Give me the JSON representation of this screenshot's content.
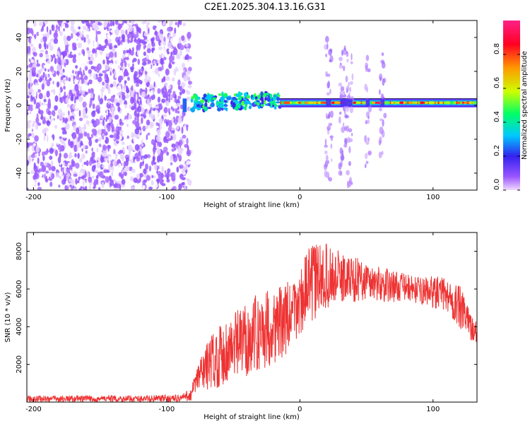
{
  "figure_title": "C2E1.2025.304.13.16.G31",
  "colors": {
    "background": "#ffffff",
    "frame": "#000000",
    "snr_line": "#ee3333",
    "noise_violet": "#7733ee",
    "band_blue": "#2233ee"
  },
  "chart_data": [
    {
      "name": "spectrogram",
      "type": "heatmap",
      "xlabel": "Height of straight line (km)",
      "ylabel": "Frequency (Hz)",
      "xlim": [
        -205,
        133
      ],
      "ylim": [
        -50,
        50
      ],
      "xticks": [
        -200,
        -100,
        0,
        100
      ],
      "yticks": [
        -40,
        -20,
        0,
        20,
        40
      ],
      "colorbar": {
        "label": "Normalized spectral amplitude",
        "range": [
          0,
          1
        ],
        "ticks": [
          0.0,
          0.2,
          0.4,
          0.6,
          0.8
        ],
        "colormap": [
          "#f0d8ff",
          "#9955ff",
          "#3322ee",
          "#00c8ff",
          "#00ff66",
          "#ccff00",
          "#ff9900",
          "#ff0022",
          "#ff2288"
        ]
      },
      "regions": [
        {
          "label": "noise",
          "x": [
            -205,
            -82
          ],
          "f": [
            -50,
            50
          ],
          "amplitude": 0.1
        },
        {
          "label": "weak-band",
          "x": [
            -82,
            -15
          ],
          "f": [
            -3,
            6
          ],
          "amplitude": 0.3
        },
        {
          "label": "strong-band",
          "x": [
            -15,
            133
          ],
          "f": [
            0,
            3
          ],
          "amplitude": 0.85
        },
        {
          "label": "burst",
          "x": [
            19,
            24
          ],
          "f": [
            -50,
            42
          ],
          "amplitude": 0.15
        },
        {
          "label": "burst",
          "x": [
            30,
            40
          ],
          "f": [
            -48,
            35
          ],
          "amplitude": 0.2
        },
        {
          "label": "burst",
          "x": [
            49,
            53
          ],
          "f": [
            -38,
            28
          ],
          "amplitude": 0.1
        },
        {
          "label": "burst",
          "x": [
            60,
            64
          ],
          "f": [
            -30,
            32
          ],
          "amplitude": 0.1
        }
      ]
    },
    {
      "name": "snr",
      "type": "line",
      "xlabel": "Height of straight line (km)",
      "ylabel": "SNR (10 * v/v)",
      "xlim": [
        -205,
        133
      ],
      "ylim": [
        0,
        9000
      ],
      "xticks": [
        -200,
        -100,
        0,
        100
      ],
      "yticks": [
        2000,
        4000,
        6000,
        8000
      ],
      "series": [
        {
          "name": "SNR",
          "color": "#ee3333",
          "x": [
            -205,
            -180,
            -150,
            -120,
            -90,
            -82,
            -75,
            -65,
            -55,
            -45,
            -35,
            -25,
            -15,
            -5,
            0,
            5,
            10,
            20,
            30,
            40,
            50,
            60,
            70,
            80,
            90,
            100,
            110,
            120,
            130,
            133
          ],
          "y_low": [
            0,
            0,
            0,
            0,
            0,
            50,
            500,
            700,
            900,
            1200,
            1500,
            1800,
            2200,
            2800,
            3500,
            4200,
            4200,
            5000,
            5200,
            5300,
            5400,
            5300,
            5300,
            5400,
            5200,
            5000,
            4800,
            3800,
            3200,
            3000
          ],
          "y_high": [
            350,
            350,
            350,
            350,
            400,
            700,
            2500,
            3800,
            4500,
            5000,
            5600,
            6000,
            6200,
            6500,
            7000,
            8000,
            8500,
            8400,
            8000,
            7800,
            7500,
            7200,
            7000,
            6800,
            6600,
            6700,
            6600,
            6200,
            4500,
            4200
          ]
        }
      ]
    }
  ]
}
